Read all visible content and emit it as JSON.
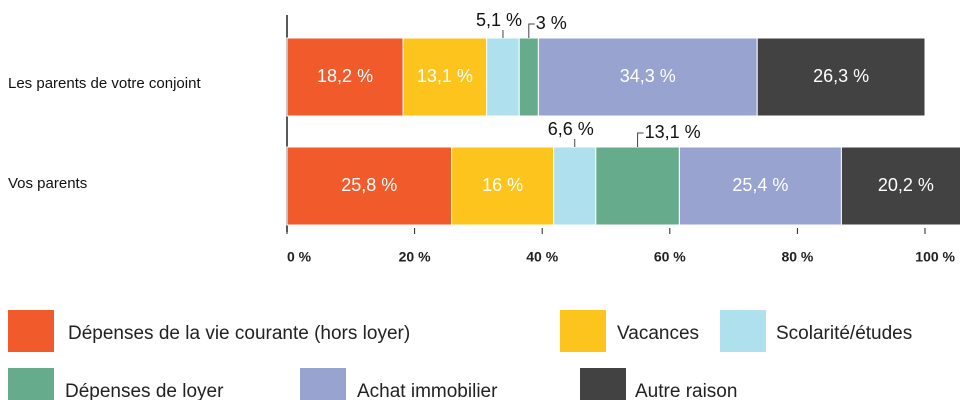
{
  "chart_data": {
    "type": "stacked-barh",
    "categories": [
      "Les parents de votre conjoint",
      "Vos parents"
    ],
    "series": [
      {
        "name": "Dépenses de la vie courante (hors loyer)",
        "color": "#f15a2b",
        "values": [
          18.2,
          25.8
        ],
        "value_labels": [
          "18,2 %",
          "25,8 %"
        ]
      },
      {
        "name": "Vacances",
        "color": "#fcc41d",
        "values": [
          13.1,
          16
        ],
        "value_labels": [
          "13,1 %",
          "16 %"
        ]
      },
      {
        "name": "Scolarité/études",
        "color": "#aee0ee",
        "values": [
          5.1,
          6.6
        ],
        "value_labels": [
          "5,1 %",
          "6,6 %"
        ]
      },
      {
        "name": "Dépenses de loyer",
        "color": "#67ab8d",
        "values": [
          3,
          13.1
        ],
        "value_labels": [
          "3 %",
          "13,1 %"
        ]
      },
      {
        "name": "Achat immobilier",
        "color": "#98a3cf",
        "values": [
          34.3,
          25.4
        ],
        "value_labels": [
          "34,3 %",
          "25,4 %"
        ]
      },
      {
        "name": "Autre raison",
        "color": "#424242",
        "values": [
          26.3,
          20.2
        ],
        "value_labels": [
          "26,3 %",
          "20,2 %"
        ]
      }
    ],
    "xlim": [
      0,
      100
    ],
    "xticks": [
      {
        "value": 0,
        "label": "0 %"
      },
      {
        "value": 20,
        "label": "20 %"
      },
      {
        "value": 40,
        "label": "40 %"
      },
      {
        "value": 60,
        "label": "60 %"
      },
      {
        "value": 80,
        "label": "80 %"
      },
      {
        "value": 100,
        "label": "100 %"
      }
    ]
  }
}
